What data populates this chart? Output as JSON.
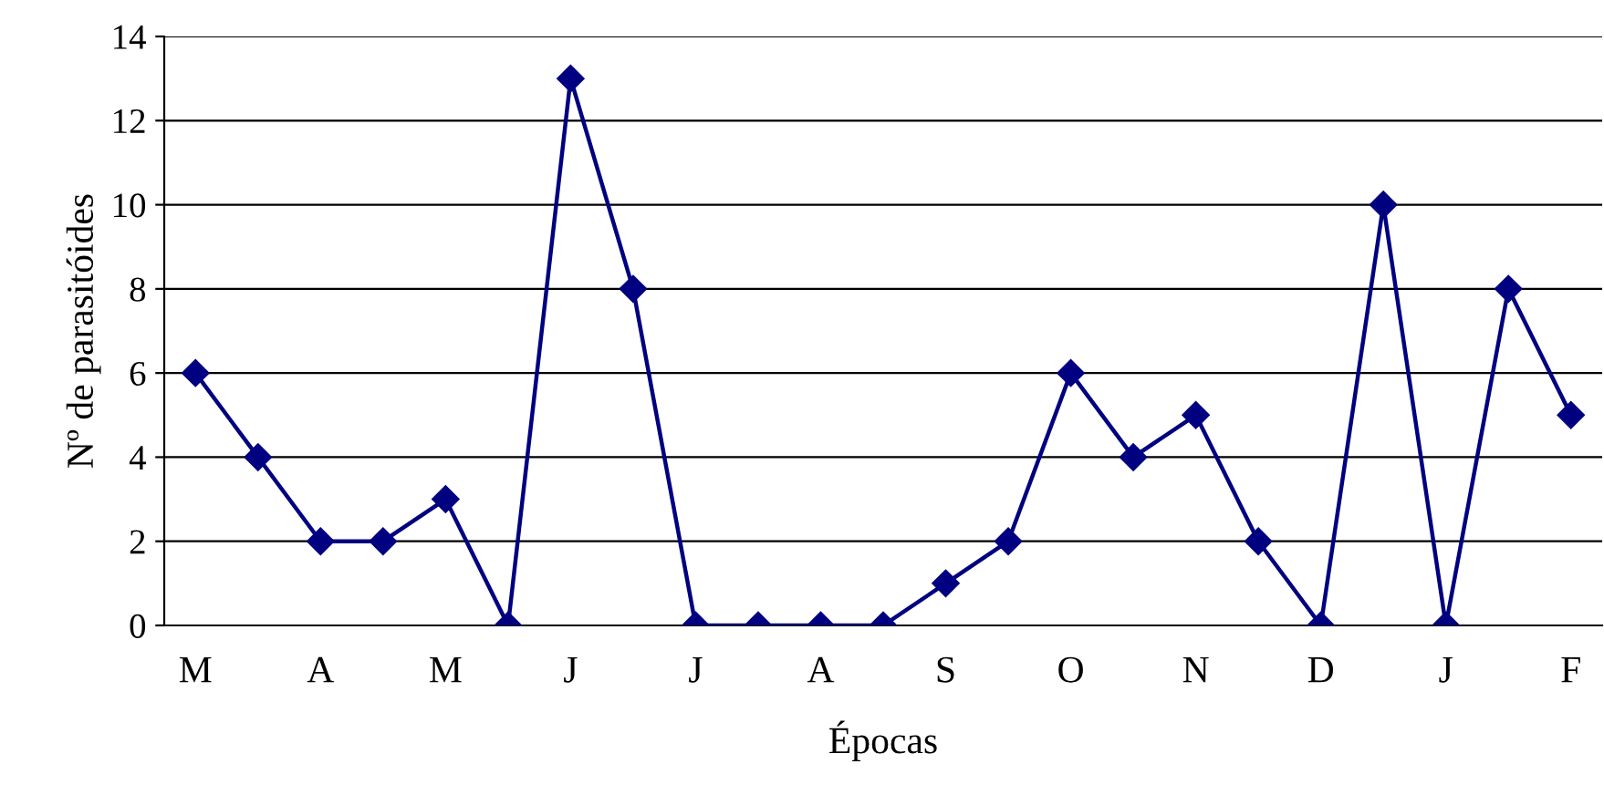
{
  "chart_data": {
    "type": "line",
    "xlabel": "Épocas",
    "ylabel": "Nº de parasitóides",
    "categories": [
      "M",
      null,
      "A",
      null,
      "M",
      null,
      "J",
      null,
      "J",
      null,
      "A",
      null,
      "S",
      null,
      "O",
      null,
      "N",
      null,
      "D",
      null,
      "J",
      null,
      "F"
    ],
    "series": [
      {
        "color": "#000080",
        "values": [
          6,
          4,
          2,
          2,
          3,
          0,
          13,
          8,
          0,
          0,
          0,
          0,
          1,
          2,
          6,
          4,
          5,
          2,
          0,
          10,
          0,
          8,
          5
        ]
      }
    ],
    "ylim": [
      0,
      14
    ],
    "yticks": [
      0,
      2,
      4,
      6,
      8,
      10,
      12,
      14
    ],
    "grid": "y",
    "marker": "diamond",
    "line_style": "solid",
    "legend": false
  }
}
